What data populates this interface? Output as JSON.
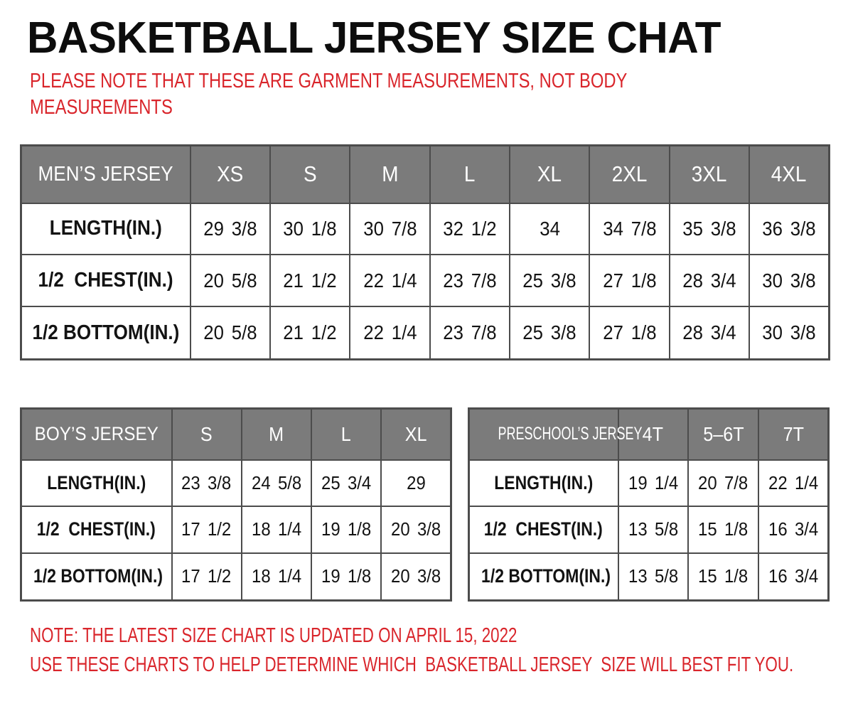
{
  "header": {
    "title": "BASKETBALL JERSEY SIZE CHAT",
    "disclaimer_line1": "PLEASE NOTE THAT THESE ARE GARMENT MEASUREMENTS, NOT BODY",
    "disclaimer_line2": "MEASUREMENTS"
  },
  "colors": {
    "accent_red": "#d9252b",
    "table_header_gray": "#7b7b7b",
    "table_border_gray": "#4c4c4c",
    "header_text_white": "#ffffff",
    "title_black": "#0d0d0d"
  },
  "tables": [
    {
      "id": "mens",
      "header": [
        "MEN’S JERSEY",
        "XS",
        "S",
        "M",
        "L",
        "XL",
        "2XL",
        "3XL",
        "4XL"
      ],
      "rows": [
        [
          "LENGTH(IN.)",
          "29 3/8",
          "30 1/8",
          "30 7/8",
          "32 1/2",
          "34",
          "34 7/8",
          "35 3/8",
          "36 3/8"
        ],
        [
          "1/2  CHEST(IN.)",
          "20 5/8",
          "21 1/2",
          "22 1/4",
          "23 7/8",
          "25 3/8",
          "27 1/8",
          "28 3/4",
          "30 3/8"
        ],
        [
          "1/2 BOTTOM(IN.)",
          "20 5/8",
          "21 1/2",
          "22 1/4",
          "23 7/8",
          "25 3/8",
          "27 1/8",
          "28 3/4",
          "30 3/8"
        ]
      ]
    },
    {
      "id": "boys",
      "header": [
        "BOY’S JERSEY",
        "S",
        "M",
        "L",
        "XL"
      ],
      "rows": [
        [
          "LENGTH(IN.)",
          "23 3/8",
          "24 5/8",
          "25 3/4",
          "29"
        ],
        [
          "1/2  CHEST(IN.)",
          "17 1/2",
          "18 1/4",
          "19 1/8",
          "20 3/8"
        ],
        [
          "1/2 BOTTOM(IN.)",
          "17 1/2",
          "18 1/4",
          "19 1/8",
          "20 3/8"
        ]
      ]
    },
    {
      "id": "preschool",
      "header": [
        "PRESCHOOL’S JERSEY",
        "4T",
        "5–6T",
        "7T"
      ],
      "rows": [
        [
          "LENGTH(IN.)",
          "19 1/4",
          "20 7/8",
          "22 1/4"
        ],
        [
          "1/2  CHEST(IN.)",
          "13 5/8",
          "15 1/8",
          "16 3/4"
        ],
        [
          "1/2 BOTTOM(IN.)",
          "13 5/8",
          "15 1/8",
          "16 3/4"
        ]
      ]
    }
  ],
  "footnotes": {
    "line1": "NOTE: THE LATEST SIZE CHART IS UPDATED ON APRIL 15, 2022",
    "line2": "USE THESE CHARTS TO HELP DETERMINE WHICH  BASKETBALL JERSEY  SIZE WILL BEST FIT YOU."
  }
}
